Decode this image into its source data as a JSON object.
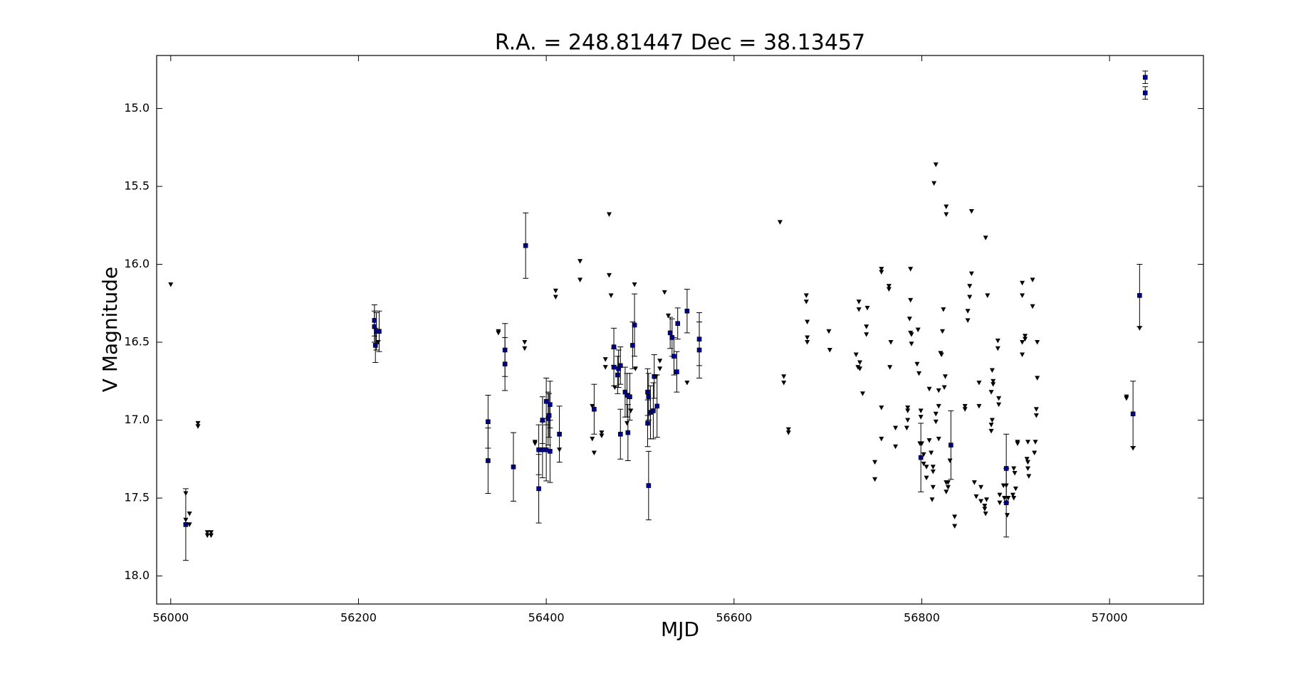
{
  "chart_data": {
    "type": "scatter",
    "title": "R.A. = 248.81447   Dec = 38.13457",
    "x_label": "MJD",
    "y_label": "V Magnitude",
    "xlim": [
      55985,
      57100
    ],
    "ylim": [
      18.18,
      14.66
    ],
    "xticks": [
      56000,
      56200,
      56400,
      56600,
      56800,
      57000
    ],
    "yticks": [
      {
        "value": 15,
        "label": "15.0"
      },
      15.5,
      {
        "value": 16,
        "label": "16.0"
      },
      16.5,
      {
        "value": 17,
        "label": "17.0"
      },
      17.5,
      {
        "value": 18,
        "label": "18.0"
      }
    ],
    "grid": false,
    "series": [
      {
        "color": "#00008b",
        "marker": "square",
        "x": [
          56016,
          56217,
          56217,
          56219,
          56222,
          56218,
          56338,
          56338,
          56356,
          56356,
          56365,
          56378,
          56392,
          56392,
          56396,
          56400,
          56396,
          56400,
          56402,
          56403,
          56404,
          56404,
          56414,
          56451,
          56472,
          56472,
          56476,
          56477,
          56479,
          56479,
          56484,
          56486,
          56487,
          56489,
          56492,
          56494,
          56508,
          56508,
          56509,
          56509,
          56511,
          56514,
          56515,
          56518,
          56532,
          56534,
          56536,
          56539,
          56540,
          56550,
          56563,
          56563,
          56799,
          56831,
          56890,
          56890,
          57025,
          57032,
          57038,
          57038
        ],
        "values": [
          17.67,
          16.36,
          16.4,
          16.43,
          16.43,
          16.52,
          17.01,
          17.26,
          16.55,
          16.64,
          17.3,
          15.88,
          17.44,
          17.19,
          17.19,
          17.19,
          17.0,
          16.88,
          16.99,
          16.97,
          17.2,
          16.9,
          17.09,
          16.93,
          16.53,
          16.66,
          16.71,
          16.67,
          16.65,
          17.09,
          16.82,
          16.84,
          17.08,
          16.85,
          16.52,
          16.39,
          17.02,
          16.82,
          16.85,
          17.42,
          16.95,
          16.94,
          16.72,
          16.91,
          16.44,
          16.47,
          16.59,
          16.69,
          16.38,
          16.3,
          16.48,
          16.55,
          17.24,
          17.16,
          17.31,
          17.53,
          16.96,
          16.2,
          14.8,
          14.9
        ],
        "errors": [
          0.23,
          0.1,
          0.1,
          0.12,
          0.13,
          0.11,
          0.17,
          0.21,
          0.17,
          0.17,
          0.22,
          0.21,
          0.22,
          0.16,
          0.18,
          0.2,
          0.15,
          0.15,
          0.17,
          0.14,
          0.2,
          0.15,
          0.18,
          0.16,
          0.12,
          0.12,
          0.12,
          0.12,
          0.12,
          0.16,
          0.16,
          0.14,
          0.18,
          0.15,
          0.15,
          0.2,
          0.15,
          0.15,
          0.15,
          0.22,
          0.17,
          0.18,
          0.14,
          0.2,
          0.1,
          0.12,
          0.12,
          0.13,
          0.1,
          0.14,
          0.17,
          0.18,
          0.22,
          0.22,
          0.22,
          0.22,
          0.21,
          0.2,
          0.04,
          0.04
        ]
      },
      {
        "color": "#000000",
        "marker": "triangle-down",
        "x": [
          56000,
          56016,
          56016,
          56020,
          56020,
          56029,
          56029,
          56039,
          56043,
          56039,
          56043,
          56221,
          56349,
          56349,
          56377,
          56377,
          56388,
          56388,
          56410,
          56410,
          56414,
          56436,
          56436,
          56449,
          56451,
          56449,
          56459,
          56459,
          56463,
          56463,
          56467,
          56467,
          56469,
          56473,
          56494,
          56495,
          56486,
          56490,
          56517,
          56521,
          56521,
          56526,
          56530,
          56550,
          56649,
          56653,
          56653,
          56658,
          56658,
          56677,
          56677,
          56678,
          56678,
          56678,
          56701,
          56702,
          56730,
          56732,
          56734,
          56734,
          56733,
          56733,
          56742,
          56741,
          56741,
          56737,
          56750,
          56750,
          56757,
          56757,
          56757,
          56757,
          56765,
          56765,
          56767,
          56766,
          56772,
          56772,
          56788,
          56788,
          56785,
          56785,
          56785,
          56784,
          56787,
          56788,
          56789,
          56789,
          56796,
          56795,
          56797,
          56799,
          56799,
          56798,
          56800,
          56802,
          56802,
          56805,
          56805,
          56808,
          56808,
          56810,
          56812,
          56812,
          56811,
          56812,
          56813,
          56815,
          56815,
          56815,
          56818,
          56818,
          56818,
          56820,
          56821,
          56823,
          56822,
          56824,
          56825,
          56826,
          56826,
          56826,
          56828,
          56826,
          56828,
          56830,
          56835,
          56835,
          56846,
          56846,
          56849,
          56849,
          56851,
          56851,
          56853,
          56853,
          56856,
          56858,
          56861,
          56861,
          56863,
          56863,
          56867,
          56867,
          56869,
          56868,
          56868,
          56870,
          56874,
          56874,
          56874,
          56875,
          56875,
          56876,
          56876,
          56881,
          56881,
          56882,
          56882,
          56883,
          56883,
          56887,
          56888,
          56890,
          56891,
          56892,
          56897,
          56898,
          56898,
          56899,
          56900,
          56902,
          56902,
          56907,
          56907,
          56907,
          56907,
          56910,
          56910,
          56913,
          56913,
          56913,
          56914,
          56912,
          56918,
          56918,
          56921,
          56920,
          56922,
          56922,
          56923,
          56923,
          57018,
          57018,
          57025,
          57032
        ],
        "values": [
          16.13,
          17.47,
          17.64,
          17.6,
          17.67,
          17.02,
          17.04,
          17.72,
          17.72,
          17.74,
          17.74,
          16.5,
          16.43,
          16.44,
          16.5,
          16.54,
          17.14,
          17.15,
          16.17,
          16.21,
          17.19,
          15.98,
          16.1,
          17.12,
          17.21,
          16.91,
          17.08,
          17.1,
          16.61,
          16.66,
          15.68,
          16.07,
          16.2,
          16.79,
          16.13,
          16.67,
          17.02,
          16.94,
          16.72,
          16.62,
          16.67,
          16.18,
          16.33,
          16.76,
          15.73,
          16.72,
          16.76,
          17.06,
          17.08,
          16.2,
          16.24,
          16.37,
          16.47,
          16.5,
          16.43,
          16.55,
          16.58,
          16.66,
          16.63,
          16.67,
          16.24,
          16.29,
          16.28,
          16.4,
          16.45,
          16.83,
          17.27,
          17.38,
          16.03,
          16.05,
          16.92,
          17.12,
          16.14,
          16.16,
          16.5,
          16.66,
          17.05,
          17.17,
          16.03,
          16.23,
          16.92,
          16.94,
          17.0,
          17.05,
          16.35,
          16.44,
          16.51,
          16.45,
          16.42,
          16.64,
          16.7,
          16.94,
          16.98,
          17.15,
          17.15,
          17.22,
          17.28,
          17.3,
          17.37,
          16.8,
          17.13,
          17.21,
          17.3,
          17.33,
          17.51,
          17.43,
          15.48,
          15.36,
          16.96,
          17.01,
          16.81,
          16.91,
          17.12,
          16.57,
          16.58,
          16.29,
          16.43,
          16.79,
          16.72,
          15.63,
          15.68,
          17.4,
          17.4,
          17.46,
          17.43,
          17.26,
          17.62,
          17.68,
          16.91,
          16.93,
          16.3,
          16.36,
          16.14,
          16.21,
          16.06,
          15.66,
          17.4,
          17.49,
          16.76,
          16.91,
          17.43,
          17.52,
          17.55,
          17.57,
          17.51,
          17.6,
          15.83,
          16.2,
          16.82,
          17.03,
          17.07,
          17.0,
          16.68,
          16.77,
          16.75,
          16.49,
          16.54,
          16.86,
          16.9,
          17.53,
          17.48,
          17.42,
          17.5,
          17.42,
          17.61,
          17.5,
          17.48,
          17.5,
          17.31,
          17.34,
          17.44,
          17.14,
          17.15,
          16.12,
          16.2,
          16.5,
          16.58,
          16.46,
          16.48,
          17.14,
          17.27,
          17.31,
          17.36,
          17.25,
          16.1,
          16.27,
          17.14,
          17.21,
          16.93,
          16.97,
          16.5,
          16.73,
          16.85,
          16.86,
          17.18,
          16.41
        ]
      }
    ]
  }
}
